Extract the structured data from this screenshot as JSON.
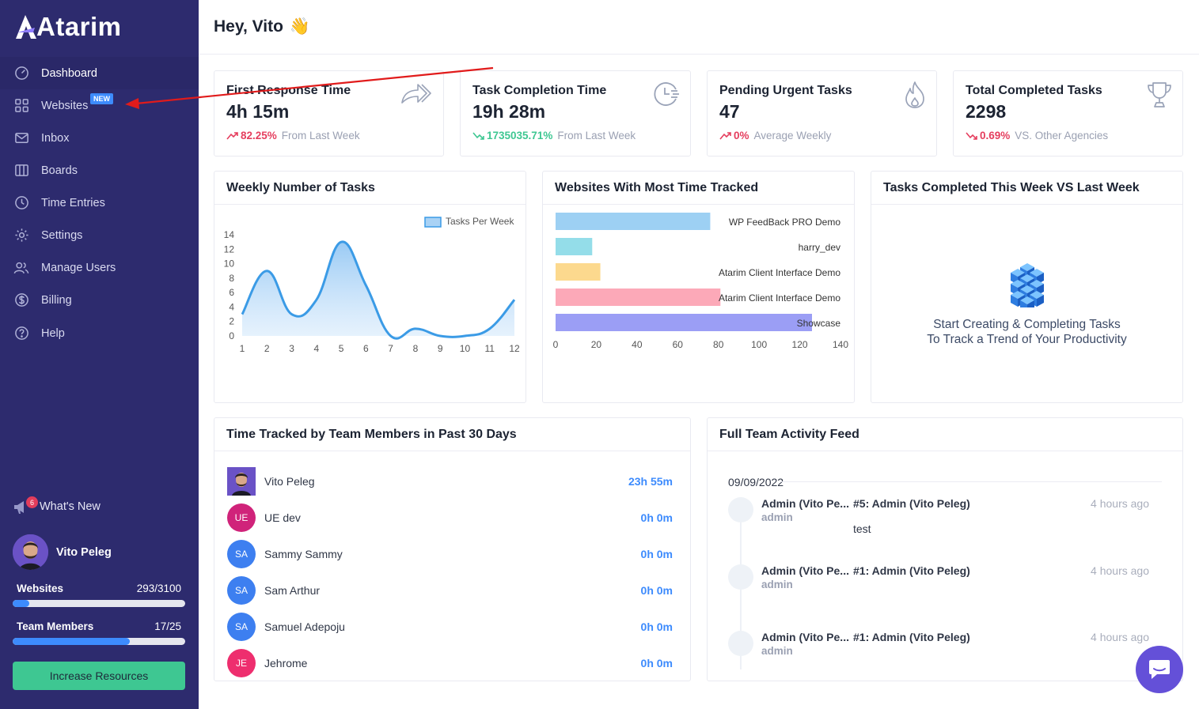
{
  "brand": {
    "name": "Atarim"
  },
  "sidebar": {
    "items": [
      {
        "label": "Dashboard",
        "icon": "dashboard-gauge-icon"
      },
      {
        "label": "Websites",
        "icon": "grid-icon",
        "badge": "NEW"
      },
      {
        "label": "Inbox",
        "icon": "mail-icon"
      },
      {
        "label": "Boards",
        "icon": "board-columns-icon"
      },
      {
        "label": "Time Entries",
        "icon": "clock-icon"
      },
      {
        "label": "Settings",
        "icon": "gear-icon"
      },
      {
        "label": "Manage Users",
        "icon": "users-icon"
      },
      {
        "label": "Billing",
        "icon": "dollar-icon"
      },
      {
        "label": "Help",
        "icon": "question-icon"
      }
    ],
    "whats_new": {
      "label": "What's New",
      "count": "6"
    },
    "user": {
      "name": "Vito Peleg"
    },
    "quotas": [
      {
        "label": "Websites",
        "value": "293/3100",
        "fraction": 0.0945
      },
      {
        "label": "Team Members",
        "value": "17/25",
        "fraction": 0.68
      }
    ],
    "increase_button": "Increase Resources"
  },
  "header": {
    "greeting": "Hey, Vito",
    "emoji": "👋"
  },
  "stats": [
    {
      "title": "First Response Time",
      "value": "4h 15m",
      "pct": "82.25%",
      "trend": "up",
      "note": "From Last Week",
      "color": "#e53e5e",
      "icon": "forward-arrows-icon"
    },
    {
      "title": "Task Completion Time",
      "value": "19h 28m",
      "pct": "1735035.71%",
      "trend": "down",
      "note": "From Last Week",
      "color": "#3ec792",
      "icon": "clock-timer-icon"
    },
    {
      "title": "Pending Urgent Tasks",
      "value": "47",
      "pct": "0%",
      "trend": "up",
      "note": "Average Weekly",
      "color": "#e53e5e",
      "icon": "flame-icon"
    },
    {
      "title": "Total Completed Tasks",
      "value": "2298",
      "pct": "0.69%",
      "trend": "down",
      "note": "VS. Other Agencies",
      "color": "#e53e5e",
      "icon": "trophy-icon"
    }
  ],
  "weekly_chart": {
    "title": "Weekly Number of Tasks",
    "legend": "Tasks Per Week"
  },
  "sites_chart": {
    "title": "Websites With Most Time Tracked"
  },
  "completed_chart": {
    "title": "Tasks Completed This Week VS Last Week",
    "empty_line1": "Start Creating & Completing Tasks",
    "empty_line2": "To Track a Trend of Your Productivity"
  },
  "chart_data": [
    {
      "type": "area",
      "title": "Weekly Number of Tasks",
      "series": [
        {
          "name": "Tasks Per Week",
          "values": [
            3,
            9,
            3,
            5,
            13,
            7,
            0,
            1,
            0,
            0,
            1,
            5
          ]
        }
      ],
      "x": [
        1,
        2,
        3,
        4,
        5,
        6,
        7,
        8,
        9,
        10,
        11,
        12
      ],
      "ylim": [
        0,
        14
      ],
      "yticks": [
        0,
        2,
        4,
        6,
        8,
        10,
        12,
        14
      ],
      "legend_position": "top-right",
      "colors": {
        "line": "#3b9be6",
        "fill": "#cfe6fb"
      }
    },
    {
      "type": "bar",
      "orientation": "horizontal",
      "title": "Websites With Most Time Tracked",
      "categories": [
        "WP FeedBack PRO Demo",
        "harry_dev",
        "Atarim Client Interface Demo",
        "Atarim Client Interface Demo",
        "Showcase"
      ],
      "values": [
        76,
        18,
        22,
        81,
        126
      ],
      "xlim": [
        0,
        140
      ],
      "xticks": [
        0,
        20,
        40,
        60,
        80,
        100,
        120,
        140
      ],
      "colors": [
        "#9dd0f3",
        "#94dde9",
        "#fcd98e",
        "#fca9b8",
        "#9b9ef5"
      ]
    }
  ],
  "team_time": {
    "title": "Time Tracked by Team Members in Past 30 Days",
    "members": [
      {
        "name": "Vito Peleg",
        "initials": "",
        "time": "23h 55m",
        "color": "#6a52c6"
      },
      {
        "name": "UE dev",
        "initials": "UE",
        "time": "0h 0m",
        "color": "#d0237a"
      },
      {
        "name": "Sammy Sammy",
        "initials": "SA",
        "time": "0h 0m",
        "color": "#3d7ff0"
      },
      {
        "name": "Sam Arthur",
        "initials": "SA",
        "time": "0h 0m",
        "color": "#3d7ff0"
      },
      {
        "name": "Samuel Adepoju",
        "initials": "SA",
        "time": "0h 0m",
        "color": "#3d7ff0"
      },
      {
        "name": "Jehrome",
        "initials": "JE",
        "time": "0h 0m",
        "color": "#ee2e6e"
      }
    ]
  },
  "activity": {
    "title": "Full Team Activity Feed",
    "date": "09/09/2022",
    "items": [
      {
        "who": "Admin (Vito Pe...",
        "role": "admin",
        "action": "#5: Admin (Vito Peleg)",
        "comment": "test",
        "ago": "4 hours ago"
      },
      {
        "who": "Admin (Vito Pe...",
        "role": "admin",
        "action": "#1: Admin (Vito Peleg)",
        "comment": "",
        "ago": "4 hours ago"
      },
      {
        "who": "Admin (Vito Pe...",
        "role": "admin",
        "action": "#1: Admin (Vito Peleg)",
        "comment": "",
        "ago": "4 hours ago"
      }
    ]
  },
  "chat": {
    "icon": "chat-bubble-icon"
  }
}
